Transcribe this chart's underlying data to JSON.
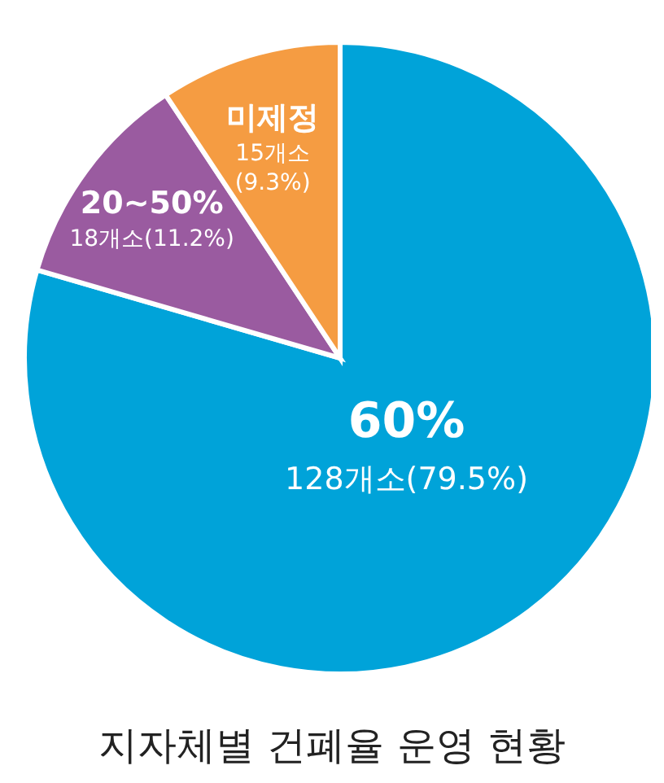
{
  "chart_data": {
    "type": "pie",
    "title": "지자체별 건폐율 운영 현황",
    "categories": [
      "60%",
      "20~50%",
      "미제정"
    ],
    "values": [
      128,
      18,
      15
    ],
    "value_labels": [
      "128개소(79.5%)",
      "18개소(11.2%)",
      "15개소(9.3%)"
    ],
    "colors": [
      "#00a3d9",
      "#9a5ba0",
      "#f59c42"
    ]
  }
}
